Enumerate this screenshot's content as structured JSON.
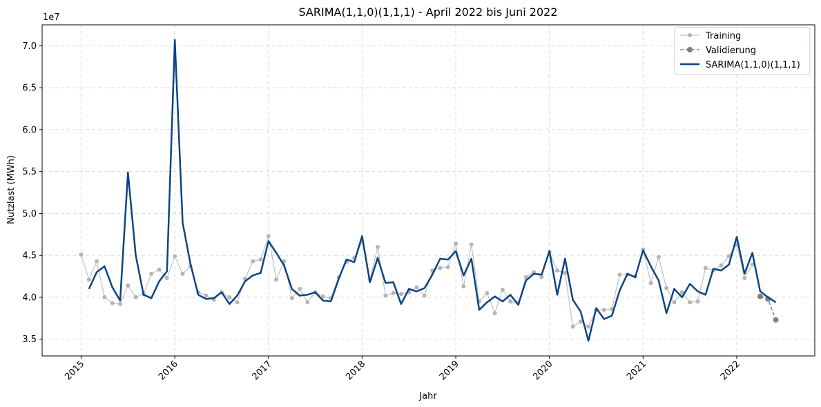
{
  "chart_data": {
    "type": "line",
    "title": "SARIMA(1,1,0)(1,1,1) - April 2022 bis Juni 2022",
    "xlabel": "Jahr",
    "ylabel": "Nutzlast (MWh)",
    "y_scale_label": "1e7",
    "x_tick_labels": [
      "2015",
      "2016",
      "2017",
      "2018",
      "2019",
      "2020",
      "2021",
      "2022"
    ],
    "y_tick_labels": [
      "3.5",
      "4.0",
      "4.5",
      "5.0",
      "5.5",
      "6.0",
      "6.5",
      "7.0"
    ],
    "y_ticks": [
      3.5,
      4.0,
      4.5,
      5.0,
      5.5,
      6.0,
      6.5,
      7.0
    ],
    "xlim": [
      "2014-08",
      "2022-11"
    ],
    "ylim": [
      3.3,
      7.25
    ],
    "grid": true,
    "legend_position": "top-right",
    "colors": {
      "training": "#b5b5b5",
      "validation": "#808080",
      "sarima": "#0b4482"
    },
    "series": [
      {
        "name": "Training",
        "style": "line-dots",
        "x": [
          "2015-01",
          "2015-02",
          "2015-03",
          "2015-04",
          "2015-05",
          "2015-06",
          "2015-07",
          "2015-08",
          "2015-09",
          "2015-10",
          "2015-11",
          "2015-12",
          "2016-01",
          "2016-02",
          "2016-03",
          "2016-04",
          "2016-05",
          "2016-06",
          "2016-07",
          "2016-08",
          "2016-09",
          "2016-10",
          "2016-11",
          "2016-12",
          "2017-01",
          "2017-02",
          "2017-03",
          "2017-04",
          "2017-05",
          "2017-06",
          "2017-07",
          "2017-08",
          "2017-09",
          "2017-10",
          "2017-11",
          "2017-12",
          "2018-01",
          "2018-02",
          "2018-03",
          "2018-04",
          "2018-05",
          "2018-06",
          "2018-07",
          "2018-08",
          "2018-09",
          "2018-10",
          "2018-11",
          "2018-12",
          "2019-01",
          "2019-02",
          "2019-03",
          "2019-04",
          "2019-05",
          "2019-06",
          "2019-07",
          "2019-08",
          "2019-09",
          "2019-10",
          "2019-11",
          "2019-12",
          "2020-01",
          "2020-02",
          "2020-03",
          "2020-04",
          "2020-05",
          "2020-06",
          "2020-07",
          "2020-08",
          "2020-09",
          "2020-10",
          "2020-11",
          "2020-12",
          "2021-01",
          "2021-02",
          "2021-03",
          "2021-04",
          "2021-05",
          "2021-06",
          "2021-07",
          "2021-08",
          "2021-09",
          "2021-10",
          "2021-11",
          "2021-12",
          "2022-01",
          "2022-02",
          "2022-03"
        ],
        "values": [
          4.51,
          4.21,
          4.43,
          4.0,
          3.93,
          3.92,
          4.14,
          4.0,
          4.04,
          4.28,
          4.33,
          4.23,
          4.49,
          4.28,
          4.37,
          4.06,
          4.02,
          3.97,
          4.06,
          4.0,
          3.94,
          4.22,
          4.43,
          4.45,
          4.73,
          4.21,
          4.43,
          3.99,
          4.1,
          3.94,
          4.06,
          4.01,
          3.99,
          4.24,
          4.42,
          4.47,
          4.66,
          4.21,
          4.6,
          4.02,
          4.05,
          4.04,
          4.06,
          4.12,
          4.02,
          4.32,
          4.35,
          4.36,
          4.64,
          4.13,
          4.63,
          3.95,
          4.05,
          3.81,
          4.09,
          3.95,
          3.93,
          4.24,
          4.3,
          4.24,
          4.54,
          4.32,
          4.29,
          3.65,
          3.71,
          3.65,
          3.85,
          3.85,
          3.86,
          4.27,
          4.27,
          4.25,
          4.57,
          4.17,
          4.48,
          4.11,
          3.94,
          4.06,
          3.94,
          3.95,
          4.35,
          4.32,
          4.38,
          4.49,
          4.63,
          4.23,
          4.39
        ]
      },
      {
        "name": "Validierung",
        "style": "dashed-dots",
        "x": [
          "2022-04",
          "2022-05",
          "2022-06"
        ],
        "values": [
          4.01,
          3.98,
          3.73
        ]
      },
      {
        "name": "SARIMA(1,1,0)(1,1,1)",
        "style": "line",
        "x": [
          "2015-02",
          "2015-03",
          "2015-04",
          "2015-05",
          "2015-06",
          "2015-07",
          "2015-08",
          "2015-09",
          "2015-10",
          "2015-11",
          "2015-12",
          "2016-01",
          "2016-02",
          "2016-03",
          "2016-04",
          "2016-05",
          "2016-06",
          "2016-07",
          "2016-08",
          "2016-09",
          "2016-10",
          "2016-11",
          "2016-12",
          "2017-01",
          "2017-02",
          "2017-03",
          "2017-04",
          "2017-05",
          "2017-06",
          "2017-07",
          "2017-08",
          "2017-09",
          "2017-10",
          "2017-11",
          "2017-12",
          "2018-01",
          "2018-02",
          "2018-03",
          "2018-04",
          "2018-05",
          "2018-06",
          "2018-07",
          "2018-08",
          "2018-09",
          "2018-10",
          "2018-11",
          "2018-12",
          "2019-01",
          "2019-02",
          "2019-03",
          "2019-04",
          "2019-05",
          "2019-06",
          "2019-07",
          "2019-08",
          "2019-09",
          "2019-10",
          "2019-11",
          "2019-12",
          "2020-01",
          "2020-02",
          "2020-03",
          "2020-04",
          "2020-05",
          "2020-06",
          "2020-07",
          "2020-08",
          "2020-09",
          "2020-10",
          "2020-11",
          "2020-12",
          "2021-01",
          "2021-02",
          "2021-03",
          "2021-04",
          "2021-05",
          "2021-06",
          "2021-07",
          "2021-08",
          "2021-09",
          "2021-10",
          "2021-11",
          "2021-12",
          "2022-01",
          "2022-02",
          "2022-03",
          "2022-04",
          "2022-05",
          "2022-06"
        ],
        "values": [
          4.1,
          4.3,
          4.37,
          4.12,
          3.96,
          5.49,
          4.5,
          4.03,
          3.99,
          4.19,
          4.31,
          7.07,
          4.89,
          4.4,
          4.03,
          3.98,
          3.99,
          4.06,
          3.92,
          4.02,
          4.19,
          4.26,
          4.29,
          4.67,
          4.53,
          4.38,
          4.1,
          4.02,
          4.03,
          4.06,
          3.96,
          3.95,
          4.22,
          4.45,
          4.42,
          4.73,
          4.18,
          4.47,
          4.17,
          4.18,
          3.92,
          4.1,
          4.07,
          4.11,
          4.27,
          4.46,
          4.45,
          4.55,
          4.26,
          4.46,
          3.85,
          3.94,
          4.01,
          3.95,
          4.03,
          3.91,
          4.2,
          4.28,
          4.27,
          4.55,
          4.03,
          4.46,
          3.97,
          3.83,
          3.48,
          3.87,
          3.74,
          3.78,
          4.08,
          4.28,
          4.24,
          4.56,
          4.37,
          4.2,
          3.81,
          4.1,
          4.0,
          4.16,
          4.07,
          4.03,
          4.34,
          4.32,
          4.39,
          4.72,
          4.28,
          4.53,
          4.07,
          4.0,
          3.94
        ]
      }
    ]
  }
}
